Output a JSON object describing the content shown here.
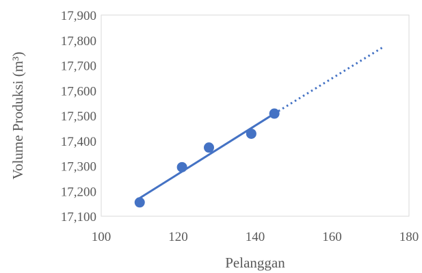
{
  "chart_data": {
    "type": "scatter",
    "xlabel": "Pelanggan",
    "ylabel": "Volume Produksi (m³)",
    "xlim": [
      100,
      180
    ],
    "ylim": [
      17100,
      17900
    ],
    "x_ticks": [
      "100",
      "120",
      "140",
      "160",
      "180"
    ],
    "y_ticks": [
      "17,100",
      "17,200",
      "17,300",
      "17,400",
      "17,500",
      "17,600",
      "17,700",
      "17,800",
      "17,900"
    ],
    "grid": false,
    "legend": "none",
    "series": [
      {
        "points": [
          {
            "x": 110,
            "y": 17155
          },
          {
            "x": 121,
            "y": 17295
          },
          {
            "x": 128,
            "y": 17373
          },
          {
            "x": 139,
            "y": 17428
          },
          {
            "x": 145,
            "y": 17508
          }
        ],
        "color": "#4472c4"
      }
    ],
    "trendline": {
      "type": "linear",
      "solid": {
        "x0": 110,
        "y0": 17172,
        "x1": 145,
        "y1": 17508
      },
      "forecast": {
        "x0": 145,
        "y0": 17508,
        "x1": 173,
        "y1": 17770
      },
      "color": "#4472c4"
    }
  }
}
